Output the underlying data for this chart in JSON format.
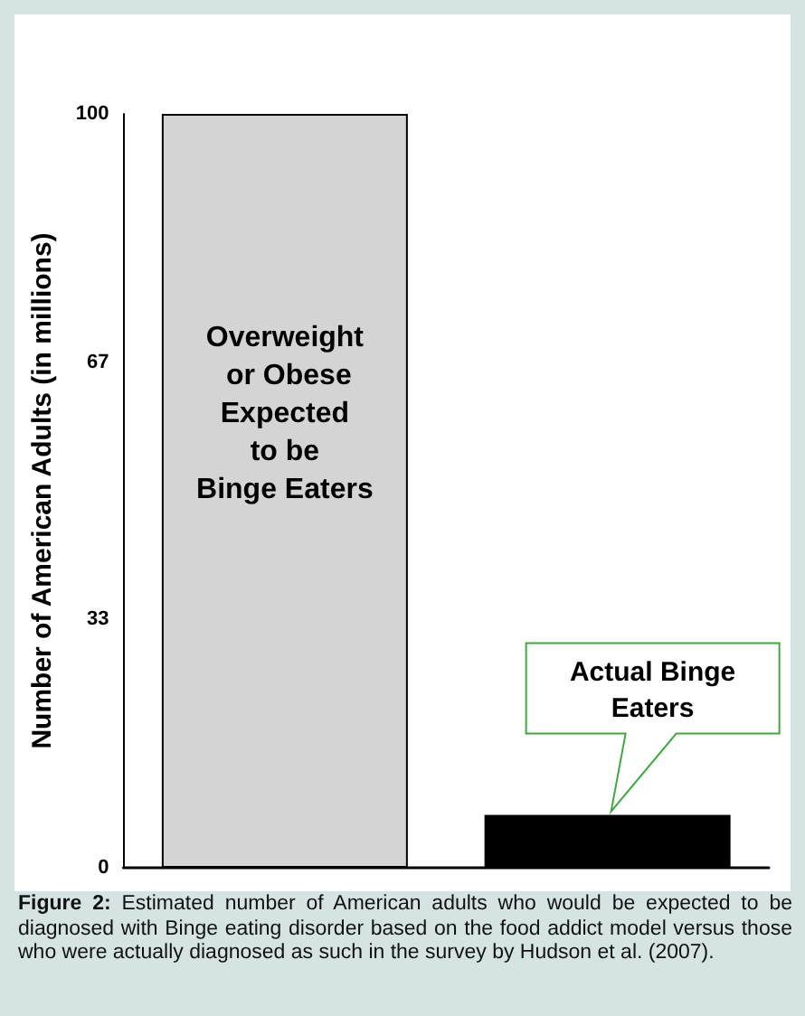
{
  "chart_data": {
    "type": "bar",
    "ylabel": "Number of American Adults (in millions)",
    "categories": [
      null,
      null
    ],
    "values": [
      100,
      7
    ],
    "colors": [
      "#d4d4d4",
      "#000000"
    ],
    "ylim": [
      0,
      100
    ],
    "yticks": [
      0,
      33,
      67,
      100
    ],
    "grid": false,
    "annotations": [
      "Overweight\n or Obese\nExpected\nto be\nBinge Eaters",
      "Actual Binge\nEaters",
      "Figure 2: Estimated number of American adults who would be expected to be diagnosed with Binge eating disorder based on the food addict model versus those who were actually diagnosed as such in the survey by Hudson et al. (2007)."
    ]
  }
}
